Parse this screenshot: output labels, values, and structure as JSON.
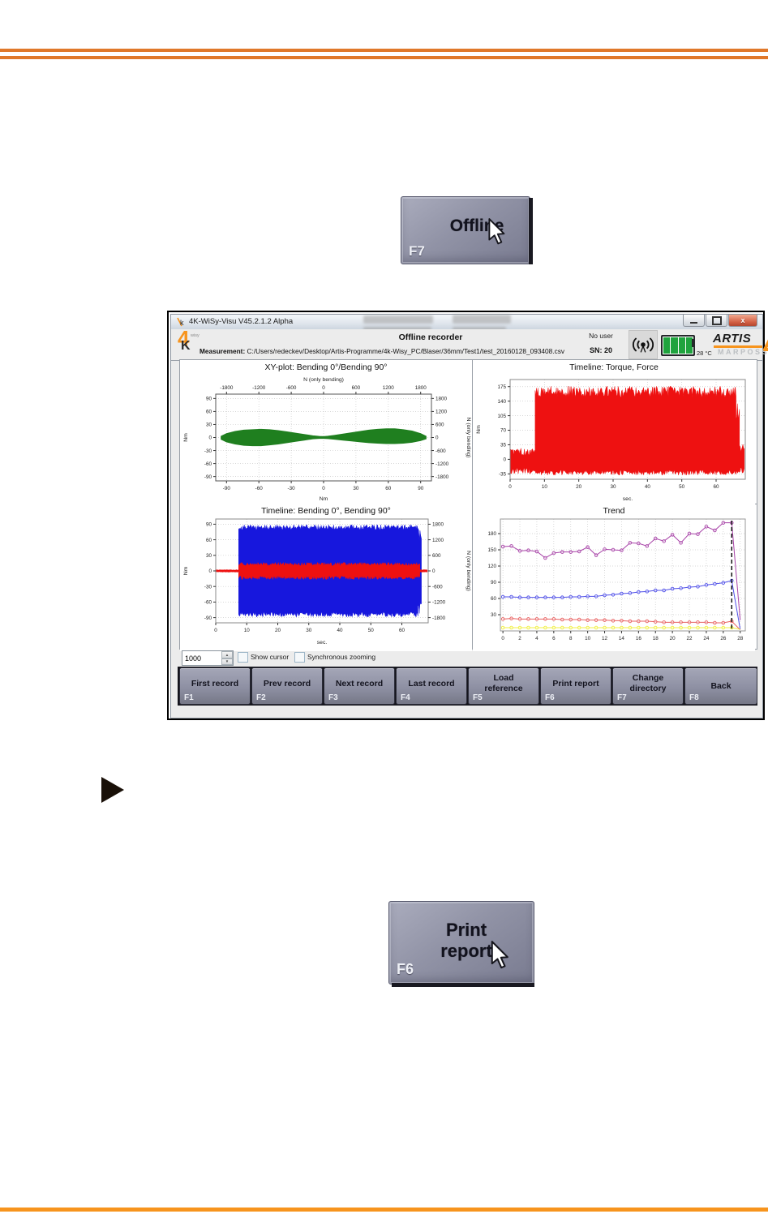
{
  "figures": {
    "offline_button": {
      "label": "Offline",
      "fkey": "F7"
    },
    "print_button": {
      "label_line1": "Print",
      "label_line2": "report",
      "fkey": "F6"
    }
  },
  "window": {
    "titlebar": {
      "title": "4K-WiSy-Visu   V45.2.1.2 Alpha",
      "close_glyph": "x"
    },
    "header": {
      "mode_title": "Offline recorder",
      "measurement_label": "Measurement:",
      "measurement_path": "C:/Users/redeckev/Desktop/Artis-Programme/4k-Wisy_PC/Blaser/36mm/Test1/test_20160128_093408.csv",
      "user": "No user",
      "serial": "SN: 20",
      "temperature": "28 °C",
      "logo_4": "4",
      "logo_k": "K",
      "logo_wisy": "wisy",
      "brand_name": "ARTIS",
      "brand_sub": "MARPOSS"
    },
    "controls": {
      "spinner_value": "1000",
      "up_glyph": "▲",
      "down_glyph": "▼",
      "checkbox_show_cursor": "Show cursor",
      "checkbox_sync_zoom": "Synchronous zooming"
    },
    "function_buttons": [
      {
        "label": "First record",
        "fkey": "F1"
      },
      {
        "label": "Prev record",
        "fkey": "F2"
      },
      {
        "label": "Next record",
        "fkey": "F3"
      },
      {
        "label": "Last record",
        "fkey": "F4"
      },
      {
        "label": "Load reference",
        "fkey": "F5"
      },
      {
        "label": "Print report",
        "fkey": "F6"
      },
      {
        "label": "Change directory",
        "fkey": "F7"
      },
      {
        "label": "Back",
        "fkey": "F8"
      }
    ]
  },
  "chart_data": [
    {
      "type": "scatter",
      "name": "xy-plot",
      "title": "XY-plot:  Bending 0°/Bending 90°",
      "xlabel": "Nm",
      "xlabel_top": "N (only bending)",
      "ylabel_left": "Nm",
      "ylabel_right": "N (only bending)",
      "x_ticks": [
        -90,
        -60,
        -30,
        0,
        30,
        60,
        90
      ],
      "x_ticks_top": [
        -1800,
        -1200,
        -600,
        0,
        600,
        1200,
        1800
      ],
      "y_ticks_left": [
        90,
        60,
        30,
        0,
        -30,
        -60,
        -90
      ],
      "y_ticks_right": [
        1800,
        1200,
        600,
        0,
        -600,
        -1200,
        -1800
      ],
      "xlim": [
        -100,
        100
      ],
      "ylim": [
        -100,
        100
      ],
      "xlim_top": [
        -2000,
        2000
      ],
      "ylim_right": [
        -2000,
        2000
      ],
      "color": "#1f7f1f",
      "envelope": {
        "x": [
          -95,
          -90,
          -82,
          -74,
          -66,
          -58,
          -50,
          -42,
          -34,
          -26,
          -18,
          -10,
          -4,
          0,
          4,
          10,
          18,
          26,
          34,
          42,
          50,
          58,
          66,
          74,
          82,
          90,
          95
        ],
        "upper": [
          3,
          9,
          14,
          17,
          18,
          19,
          18,
          16,
          13,
          10,
          7,
          4,
          2.5,
          2,
          3,
          5,
          8,
          11,
          14,
          17,
          19,
          20,
          20,
          18,
          15,
          9,
          3
        ],
        "lower": [
          -4,
          -10,
          -15,
          -18,
          -19,
          -19,
          -17,
          -15,
          -12,
          -9,
          -6,
          -3,
          -2,
          -2,
          -2.5,
          -4,
          -6,
          -8,
          -10,
          -12,
          -13,
          -14,
          -14,
          -13,
          -11,
          -7,
          -3
        ]
      }
    },
    {
      "type": "area-band",
      "name": "timeline-torque-force",
      "title": "Timeline:  Torque, Force",
      "xlabel": "sec.",
      "ylabel_left": "Nm",
      "x_ticks": [
        0,
        10,
        20,
        30,
        40,
        50,
        60
      ],
      "y_ticks_left": [
        175,
        140,
        105,
        70,
        35,
        0,
        -35
      ],
      "xlim": [
        0,
        68.5
      ],
      "ylim": [
        -48,
        192
      ],
      "bands": [
        {
          "color": "#ee1111",
          "segments": [
            {
              "t0": 0,
              "t1": 7.3,
              "upper": 18,
              "lower": -28,
              "uj": 9,
              "lj": 7
            },
            {
              "t0": 7.3,
              "t1": 65.8,
              "upper": 162,
              "lower": -32,
              "uj": 14,
              "lj": 6
            },
            {
              "t0": 65.8,
              "t1": 66.8,
              "upper": 120,
              "lower": -30,
              "uj": 25,
              "lj": 6
            },
            {
              "t0": 66.8,
              "t1": 68.2,
              "upper": 28,
              "lower": -26,
              "uj": 10,
              "lj": 8
            }
          ]
        }
      ]
    },
    {
      "type": "area-band",
      "name": "timeline-bending",
      "title": "Timeline:  Bending 0°, Bending 90°",
      "xlabel": "sec.",
      "ylabel_left": "Nm",
      "ylabel_right": "N (only bending)",
      "x_ticks": [
        0,
        10,
        20,
        30,
        40,
        50,
        60
      ],
      "y_ticks_left": [
        90,
        60,
        30,
        0,
        -30,
        -60,
        -90
      ],
      "y_ticks_right": [
        1800,
        1200,
        600,
        0,
        -600,
        -1200,
        -1800
      ],
      "xlim": [
        0,
        68.5
      ],
      "ylim": [
        -100,
        100
      ],
      "ylim_right": [
        -2000,
        2000
      ],
      "bands": [
        {
          "color": "#1717dd",
          "segments": [
            {
              "t0": 7.4,
              "t1": 65.2,
              "upper": 84,
              "lower": -84,
              "uj": 5,
              "lj": 5
            },
            {
              "t0": 65.2,
              "t1": 66.3,
              "upper": 70,
              "lower": -70,
              "uj": 12,
              "lj": 12
            }
          ]
        },
        {
          "color": "#ee1111",
          "segments": [
            {
              "t0": 0,
              "t1": 7.4,
              "upper": 2,
              "lower": -2,
              "uj": 0.5,
              "lj": 0.5
            },
            {
              "t0": 7.4,
              "t1": 65.8,
              "upper": 13,
              "lower": -13,
              "uj": 3.5,
              "lj": 3.5
            },
            {
              "t0": 65.8,
              "t1": 68.2,
              "upper": 2,
              "lower": -2,
              "uj": 0.5,
              "lj": 0.5
            }
          ]
        }
      ]
    },
    {
      "type": "line",
      "name": "trend",
      "title": "Trend",
      "x_ticks": [
        0,
        2,
        4,
        6,
        8,
        10,
        12,
        14,
        16,
        18,
        20,
        22,
        24,
        26,
        28
      ],
      "y_ticks_left": [
        180,
        150,
        120,
        90,
        60,
        30
      ],
      "xlim": [
        -0.3,
        28.6
      ],
      "ylim": [
        0,
        207
      ],
      "cursor_x": 27,
      "series": [
        {
          "name": "max",
          "color": "#a844a8",
          "values": [
            156,
            157,
            148,
            149,
            147,
            135,
            144,
            146,
            146,
            147,
            155,
            140,
            151,
            150,
            149,
            163,
            162,
            157,
            171,
            166,
            178,
            163,
            180,
            179,
            193,
            186,
            200,
            200
          ],
          "end_value": 20
        },
        {
          "name": "mean-upper",
          "color": "#5050e8",
          "values": [
            63,
            63,
            62,
            62,
            62,
            62,
            62,
            62,
            63,
            63,
            64,
            64,
            66,
            67,
            69,
            70,
            72,
            73,
            75,
            75,
            78,
            79,
            81,
            82,
            85,
            87,
            89,
            93
          ],
          "end_value": 3
        },
        {
          "name": "mean-lower",
          "color": "#e86060",
          "values": [
            22,
            23,
            22,
            22,
            22,
            22,
            22,
            21,
            21,
            21,
            20,
            20,
            20,
            19,
            19,
            18,
            18,
            18,
            17,
            16,
            16,
            16,
            16,
            16,
            16,
            15,
            15,
            18
          ],
          "end_value": 2
        },
        {
          "name": "min",
          "color": "#f0f040",
          "values": [
            6,
            6,
            6,
            6,
            6,
            6,
            6,
            6,
            6,
            6,
            6,
            6,
            6,
            6,
            6,
            6,
            6,
            6,
            6,
            6,
            6,
            6,
            6,
            6,
            6,
            6,
            6,
            6
          ],
          "end_value": 3
        }
      ]
    }
  ]
}
